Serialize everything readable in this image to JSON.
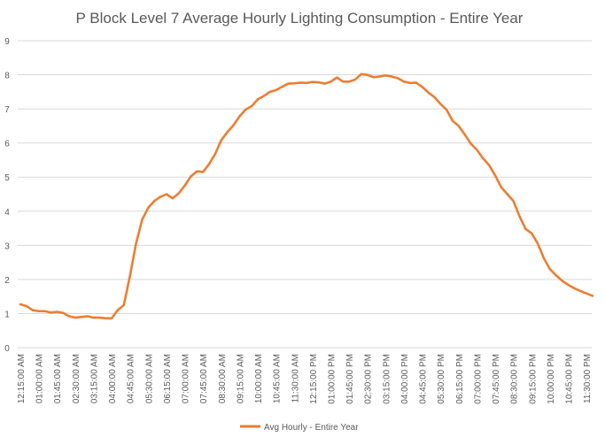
{
  "chart_data": {
    "type": "line",
    "title": "P Block Level 7 Average Hourly Lighting Consumption - Entire Year",
    "xlabel": "",
    "ylabel": "",
    "ylim": [
      0,
      9
    ],
    "yticks": [
      0,
      1,
      2,
      3,
      4,
      5,
      6,
      7,
      8,
      9
    ],
    "grid": true,
    "legend_position": "bottom",
    "x_tick_labels": [
      "12:15:00 AM",
      "01:00:00 AM",
      "01:45:00 AM",
      "02:30:00 AM",
      "03:15:00 AM",
      "04:00:00 AM",
      "04:45:00 AM",
      "05:30:00 AM",
      "06:15:00 AM",
      "07:00:00 AM",
      "07:45:00 AM",
      "08:30:00 AM",
      "09:15:00 AM",
      "10:00:00 AM",
      "10:45:00 AM",
      "11:30:00 AM",
      "12:15:00 PM",
      "01:00:00 PM",
      "01:45:00 PM",
      "02:30:00 PM",
      "03:15:00 PM",
      "04:00:00 PM",
      "04:45:00 PM",
      "05:30:00 PM",
      "06:15:00 PM",
      "07:00:00 PM",
      "07:45:00 PM",
      "08:30:00 PM",
      "09:15:00 PM",
      "10:00:00 PM",
      "10:45:00 PM",
      "11:30:00 PM"
    ],
    "series": [
      {
        "name": "Avg Hourly - Entire Year",
        "color": "#ED7D31",
        "values": [
          1.27,
          1.22,
          1.1,
          1.07,
          1.07,
          1.03,
          1.05,
          1.02,
          0.92,
          0.88,
          0.9,
          0.92,
          0.88,
          0.88,
          0.86,
          0.86,
          1.1,
          1.25,
          2.1,
          3.05,
          3.75,
          4.1,
          4.3,
          4.42,
          4.5,
          4.38,
          4.52,
          4.75,
          5.02,
          5.17,
          5.15,
          5.38,
          5.68,
          6.08,
          6.32,
          6.52,
          6.78,
          6.98,
          7.08,
          7.28,
          7.38,
          7.5,
          7.55,
          7.65,
          7.74,
          7.75,
          7.77,
          7.76,
          7.79,
          7.78,
          7.74,
          7.8,
          7.92,
          7.8,
          7.8,
          7.86,
          8.02,
          8.0,
          7.93,
          7.95,
          7.98,
          7.95,
          7.9,
          7.8,
          7.76,
          7.77,
          7.65,
          7.48,
          7.35,
          7.15,
          6.98,
          6.65,
          6.5,
          6.25,
          5.98,
          5.8,
          5.55,
          5.35,
          5.05,
          4.7,
          4.5,
          4.3,
          3.85,
          3.48,
          3.35,
          3.05,
          2.62,
          2.3,
          2.12,
          1.96,
          1.84,
          1.74,
          1.66,
          1.59,
          1.52
        ]
      }
    ]
  }
}
